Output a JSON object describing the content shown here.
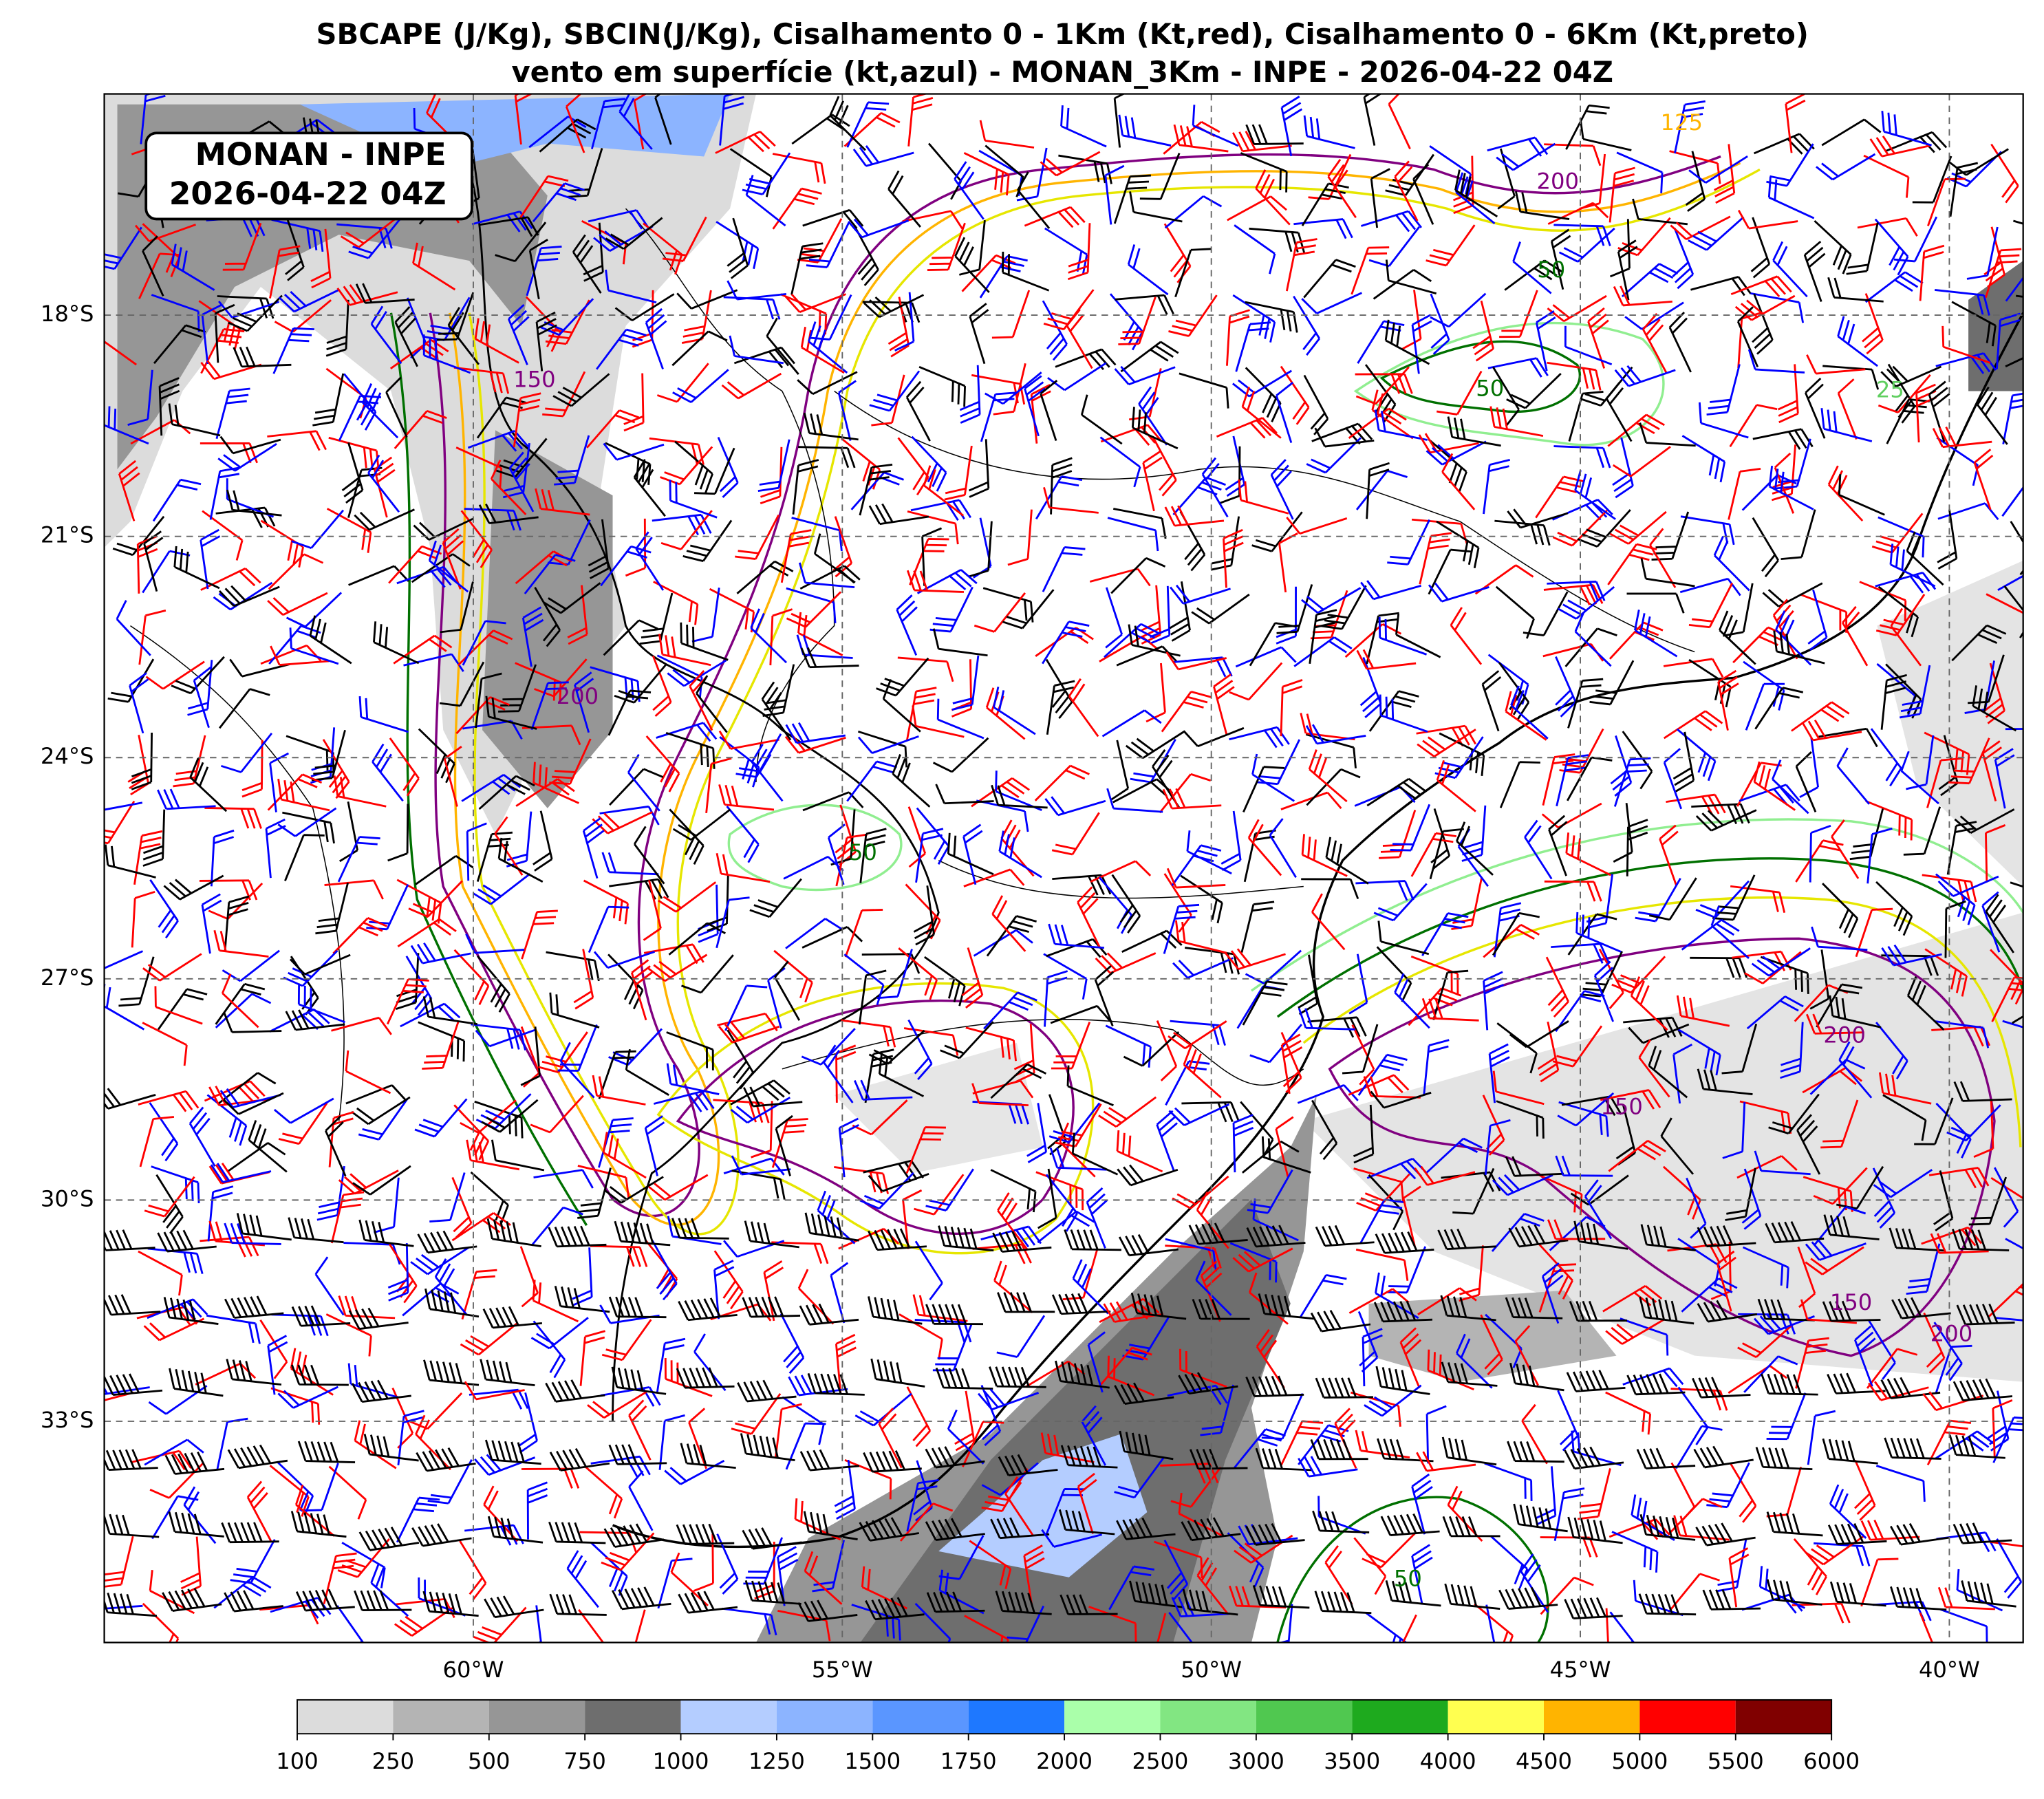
{
  "title": [
    "SBCAPE (J/Kg), SBCIN(J/Kg), Cisalhamento 0 - 1Km (Kt,red), Cisalhamento 0 - 6Km (Kt,preto)",
    "vento em superfície (kt,azul) - MONAN_3Km - INPE - 2026-04-22 04Z"
  ],
  "badge": [
    "MONAN - INPE",
    "2026-04-22 04Z"
  ],
  "map": {
    "xlim": [
      -65,
      -39
    ],
    "ylim": [
      -15,
      -36
    ],
    "lat_ticks": [
      {
        "value": -18,
        "label": "18°S"
      },
      {
        "value": -21,
        "label": "21°S"
      },
      {
        "value": -24,
        "label": "24°S"
      },
      {
        "value": -27,
        "label": "27°S"
      },
      {
        "value": -30,
        "label": "30°S"
      },
      {
        "value": -33,
        "label": "33°S"
      }
    ],
    "lon_ticks": [
      {
        "value": -60,
        "label": "60°W"
      },
      {
        "value": -55,
        "label": "55°W"
      },
      {
        "value": -50,
        "label": "50°W"
      },
      {
        "value": -45,
        "label": "45°W"
      },
      {
        "value": -40,
        "label": "40°W"
      }
    ],
    "contour_labels": [
      50,
      50,
      125,
      150,
      200,
      200,
      150,
      150,
      200,
      200,
      25,
      50,
      50
    ]
  },
  "colorbar": {
    "levels": [
      100,
      250,
      500,
      750,
      1000,
      1250,
      1500,
      1750,
      2000,
      2500,
      3000,
      3500,
      4000,
      4500,
      5000,
      5500,
      6000
    ],
    "colors": [
      "#dcdcdc",
      "#b4b4b4",
      "#969696",
      "#6e6e6e",
      "#b4cdff",
      "#8cb4ff",
      "#5a96ff",
      "#1e78ff",
      "#aaffaa",
      "#82e682",
      "#50c850",
      "#1eaa1e",
      "#ffff50",
      "#ffb400",
      "#ff0000",
      "#800000"
    ]
  }
}
